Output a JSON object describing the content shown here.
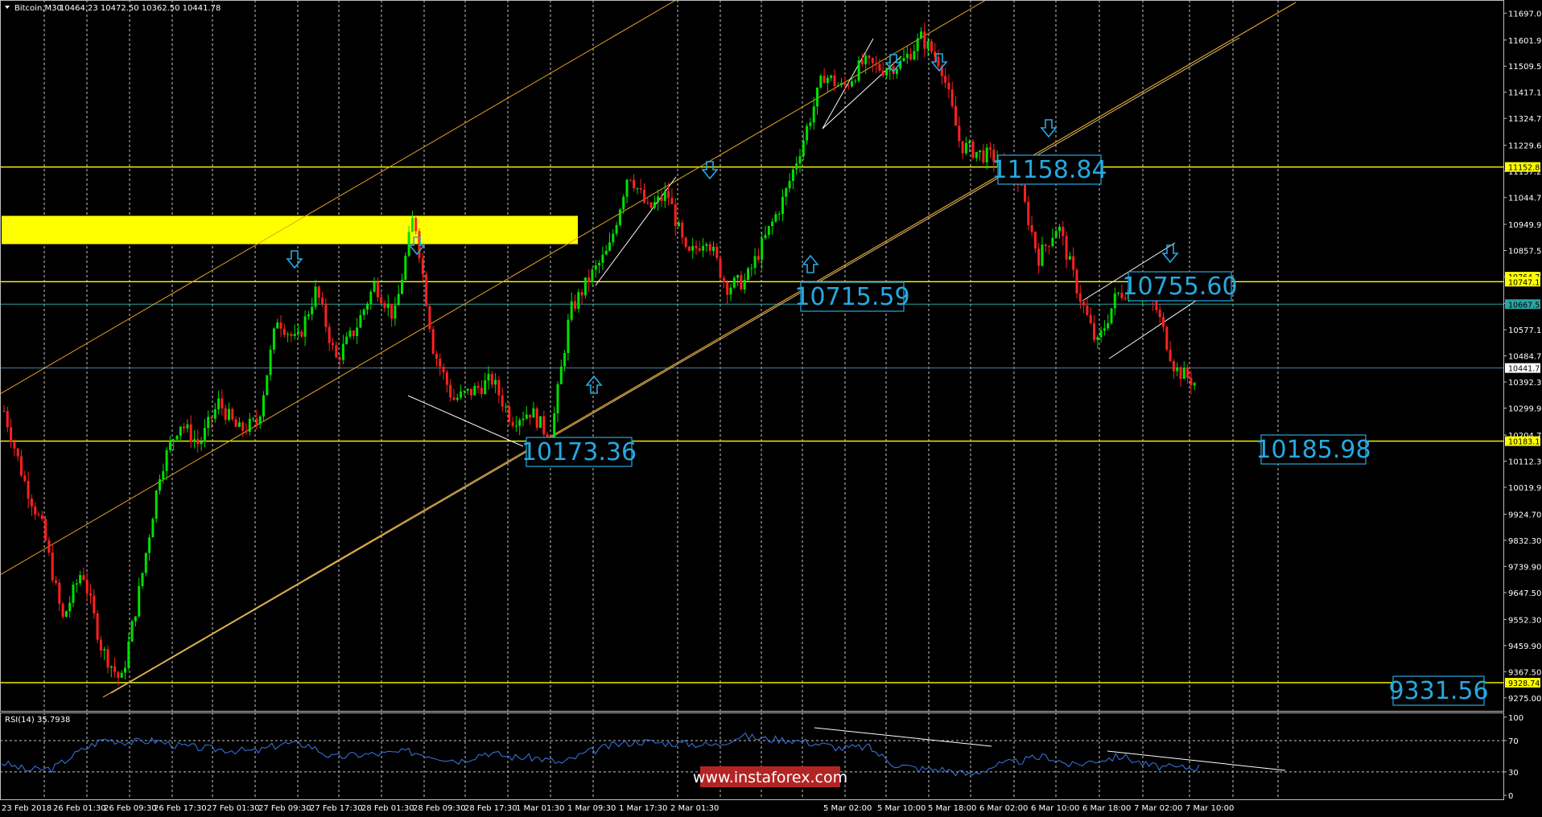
{
  "header": {
    "symbol_label": "Bitcoin,M30",
    "ohlc_text": "10464.23 10472.50 10362.50 10441.78"
  },
  "rsi_header": "RSI(14) 35.7938",
  "watermark": "www.instaforex.com",
  "colors": {
    "background": "#000000",
    "grid": "#c8c8c8",
    "bull": "#00e000",
    "bear": "#ff2020",
    "level_line": "#ffff00",
    "channel_line": "#e6a020",
    "aqua_line": "#2aa5a5",
    "label_blue": "#26a9e0",
    "rsi_line": "#3a78e8",
    "watermark_bg": "#b32424"
  },
  "chart_data": [
    {
      "type": "candlestick",
      "title": "Bitcoin,M30",
      "ylim": [
        9229.1,
        11743.44
      ],
      "y_ticks": [
        "11697.00",
        "11601.90",
        "11509.50",
        "11417.10",
        "11324.70",
        "11229.60",
        "11137.20",
        "11044.70",
        "10949.90",
        "10857.50",
        "10764.70",
        "10670.10",
        "10577.10",
        "10484.70",
        "10392.30",
        "10299.90",
        "10204.70",
        "10112.30",
        "10019.90",
        "9924.70",
        "9832.30",
        "9739.90",
        "9647.50",
        "9552.30",
        "9459.90",
        "9367.50",
        "9275.00"
      ],
      "x_ticks": [
        "23 Feb 2018",
        "26 Feb 01:30",
        "26 Feb 09:30",
        "26 Feb 17:30",
        "27 Feb 01:30",
        "27 Feb 09:30",
        "27 Feb 17:30",
        "28 Feb 01:30",
        "28 Feb 09:30",
        "28 Feb 17:30",
        "1 Mar 01:30",
        "1 Mar 09:30",
        "1 Mar 17:30",
        "2 Mar 01:30",
        "5 Mar 02:00",
        "5 Mar 10:00",
        "5 Mar 18:00",
        "6 Mar 02:00",
        "6 Mar 10:00",
        "6 Mar 18:00",
        "7 Mar 02:00",
        "7 Mar 10:00"
      ],
      "price_path": [
        10290,
        10050,
        9870,
        9550,
        9730,
        9450,
        9330,
        9680,
        10080,
        10250,
        10170,
        10320,
        10220,
        10250,
        10620,
        10530,
        10720,
        10470,
        10580,
        10740,
        10620,
        10990,
        10510,
        10330,
        10360,
        10400,
        10260,
        10290,
        10190,
        10640,
        10760,
        10860,
        11140,
        11000,
        11060,
        10830,
        10910,
        10730,
        10750,
        10900,
        11050,
        11260,
        11480,
        11430,
        11520,
        11500,
        11520,
        11610,
        11520,
        11230,
        11200,
        11180,
        11100,
        10830,
        10950,
        10720,
        10520,
        10700,
        10730,
        10660,
        10440,
        10390
      ],
      "current_price": 10441.78,
      "price_tags": [
        {
          "value": 11152.81,
          "text": "11152.81",
          "style": "yellow"
        },
        {
          "value": 10764.7,
          "text": "10764.70",
          "style": "yellow"
        },
        {
          "value": 10747.14,
          "text": "10747.14",
          "style": "yellow"
        },
        {
          "value": 10667.58,
          "text": "10667.58",
          "style": "aqua"
        },
        {
          "value": 10441.78,
          "text": "10441.78",
          "style": "white"
        },
        {
          "value": 10183.16,
          "text": "10183.16",
          "style": "yellow"
        },
        {
          "value": 9328.74,
          "text": "9328.74",
          "style": "yellow"
        }
      ],
      "horizontal_levels": [
        11152.81,
        10747.14,
        10183.16,
        9328.74
      ],
      "aqua_level": 10667.58,
      "resistance_zone": [
        10880,
        10980
      ],
      "annotations": [
        {
          "text": "11158.84",
          "value": 11158.84
        },
        {
          "text": "10715.59",
          "value": 10715.59
        },
        {
          "text": "10755.60",
          "value": 10755.6
        },
        {
          "text": "10173.36",
          "value": 10173.36
        },
        {
          "text": "10185.98",
          "value": 10185.98
        },
        {
          "text": "9331.56",
          "value": 9331.56
        }
      ],
      "arrows_down_count": 7,
      "arrows_up_count": 2
    },
    {
      "type": "line",
      "title": "RSI(14) 35.7938",
      "ylim": [
        0,
        100
      ],
      "y_ticks": [
        "100",
        "70",
        "30",
        "0"
      ],
      "levels": [
        70,
        30
      ],
      "last_value": 35.7938,
      "series_path": [
        42,
        32,
        34,
        55,
        72,
        68,
        70,
        63,
        60,
        58,
        56,
        66,
        65,
        48,
        52,
        53,
        56,
        50,
        44,
        55,
        49,
        48,
        41,
        55,
        64,
        69,
        67,
        66,
        64,
        76,
        72,
        71,
        66,
        60,
        62,
        40,
        34,
        33,
        26,
        38,
        44,
        50,
        38,
        45,
        50,
        38,
        35,
        36
      ]
    }
  ]
}
